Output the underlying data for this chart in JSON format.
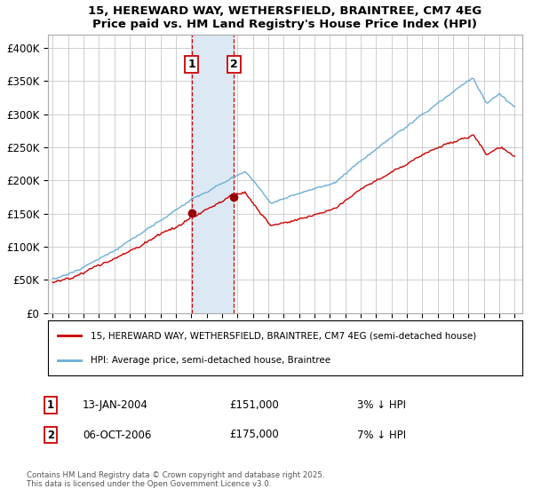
{
  "title": "15, HEREWARD WAY, WETHERSFIELD, BRAINTREE, CM7 4EG",
  "subtitle": "Price paid vs. HM Land Registry's House Price Index (HPI)",
  "ylim": [
    0,
    420000
  ],
  "yticks": [
    0,
    50000,
    100000,
    150000,
    200000,
    250000,
    300000,
    350000,
    400000
  ],
  "ytick_labels": [
    "£0",
    "£50K",
    "£100K",
    "£150K",
    "£200K",
    "£250K",
    "£300K",
    "£350K",
    "£400K"
  ],
  "xlim_start": 1994.7,
  "xlim_end": 2025.5,
  "sale1_date": 2004.04,
  "sale1_price": 151000,
  "sale1_label": "1",
  "sale2_date": 2006.77,
  "sale2_price": 175000,
  "sale2_label": "2",
  "hpi_line_color": "#6baed6",
  "price_line_color": "#cc0000",
  "sale_marker_color": "#990000",
  "shade_color": "#dce9f5",
  "grid_color": "#c8c8c8",
  "background_color": "#ffffff",
  "legend_text_red": "15, HEREWARD WAY, WETHERSFIELD, BRAINTREE, CM7 4EG (semi-detached house)",
  "legend_text_blue": "HPI: Average price, semi-detached house, Braintree",
  "annotation1_date": "13-JAN-2004",
  "annotation1_price": "£151,000",
  "annotation1_hpi": "3% ↓ HPI",
  "annotation2_date": "06-OCT-2006",
  "annotation2_price": "£175,000",
  "annotation2_hpi": "7% ↓ HPI",
  "footnote": "Contains HM Land Registry data © Crown copyright and database right 2025.\nThis data is licensed under the Open Government Licence v3.0."
}
